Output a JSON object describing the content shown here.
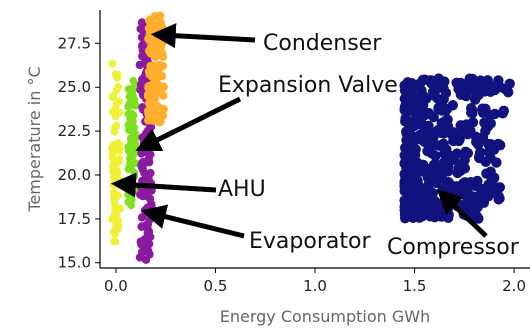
{
  "chart_data": {
    "type": "scatter",
    "title": "",
    "xlabel": "Energy Consumption GWh",
    "ylabel": "Temperature in °C",
    "xlim": [
      -0.08,
      2.08
    ],
    "ylim": [
      14.7,
      29.4
    ],
    "xticks": [
      0.0,
      0.5,
      1.0,
      1.5,
      2.0
    ],
    "xtick_labels": [
      "0.0",
      "0.5",
      "1.0",
      "1.5",
      "2.0"
    ],
    "yticks": [
      15.0,
      17.5,
      20.0,
      22.5,
      25.0,
      27.5
    ],
    "ytick_labels": [
      "15.0",
      "17.5",
      "20.0",
      "22.5",
      "25.0",
      "27.5"
    ],
    "grid": false,
    "series": [
      {
        "name": "",
        "color": "#f0f034",
        "x_range": [
          -0.02,
          0.02
        ],
        "y_range": [
          16.1,
          26.4
        ]
      },
      {
        "name": "",
        "color": "#7fe01f",
        "x_range": [
          0.06,
          0.1
        ],
        "y_range": [
          18.2,
          25.4
        ]
      },
      {
        "name": "",
        "color": "#8b1aa0",
        "x_range": [
          0.12,
          0.18
        ],
        "y_range": [
          15.1,
          29.0
        ]
      },
      {
        "name": "",
        "color": "#ffae2e",
        "x_range": [
          0.16,
          0.24
        ],
        "y_range": [
          23.0,
          29.1
        ]
      },
      {
        "name": "",
        "color": "#12127f",
        "x_range": [
          1.45,
          1.98
        ],
        "y_range": [
          17.5,
          25.5
        ]
      }
    ],
    "annotations": [
      {
        "text": "Condenser",
        "arrow_to": [
          0.2,
          28.0
        ]
      },
      {
        "text": "Expansion Valve",
        "arrow_to": [
          0.12,
          21.5
        ]
      },
      {
        "text": "AHU",
        "arrow_to": [
          0.0,
          19.5
        ]
      },
      {
        "text": "Evaporator",
        "arrow_to": [
          0.15,
          17.9
        ]
      },
      {
        "text": "Compressor",
        "arrow_to": [
          1.63,
          19.0
        ]
      }
    ]
  }
}
